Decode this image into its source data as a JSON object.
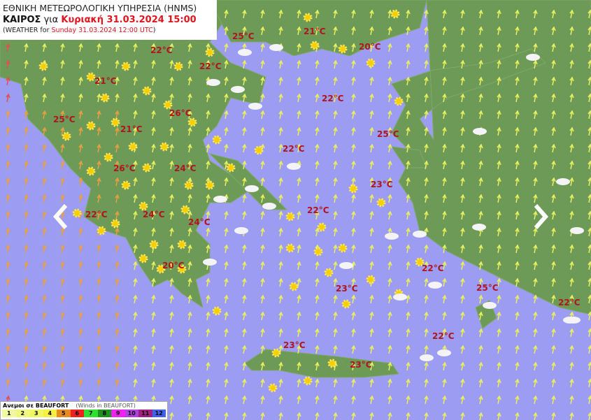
{
  "header": {
    "agency": "ΕΘΝΙΚΗ ΜΕΤΕΩΡΟΛΟΓΙΚΗ ΥΠΗΡΕΣΙΑ (HNMS)",
    "weather_label": "ΚΑΙΡΟΣ",
    "for_label": "για",
    "datetime_gr": "Κυριακή 31.03.2024 15:00",
    "en_prefix": "(WEATHER for",
    "datetime_en": "Sunday 31.03.2024 12:00 UTC",
    "en_suffix": ")"
  },
  "temperatures": [
    "25°C",
    "21°C",
    "22°C",
    "22°C",
    "20°C",
    "21°C",
    "22°C",
    "26°C",
    "25°C",
    "21°C",
    "25°C",
    "22°C",
    "26°C",
    "24°C",
    "23°C",
    "22°C",
    "22°C",
    "24°C",
    "24°C",
    "20°C",
    "22°C",
    "23°C",
    "25°C",
    "22°C",
    "22°C",
    "23°C",
    "23°C"
  ],
  "icons": {
    "sun": "sun-icon",
    "cloud": "cloud-icon",
    "wind": "wind-arrow-icon",
    "prev": "chevron-left-icon",
    "next": "chevron-right-icon"
  },
  "colors": {
    "sea": "#9c9cf2",
    "land": "#6e9a58",
    "temp_text": "#b0141e",
    "wind_arrow": "#e8f060",
    "sun": "#f5d000"
  },
  "legend": {
    "title": "Ανεμοι σε BEAUFORT",
    "subtitle": "(Winds in BEAUFORT)",
    "levels": [
      {
        "label": "1",
        "color": "#f0f8a0"
      },
      {
        "label": "2",
        "color": "#f0f880"
      },
      {
        "label": "3",
        "color": "#f0f860"
      },
      {
        "label": "4",
        "color": "#f8f040"
      },
      {
        "label": "5",
        "color": "#e88a20"
      },
      {
        "label": "6",
        "color": "#f02020"
      },
      {
        "label": "7",
        "color": "#30e030"
      },
      {
        "label": "8",
        "color": "#209020"
      },
      {
        "label": "9",
        "color": "#f020f0"
      },
      {
        "label": "10",
        "color": "#b040e0"
      },
      {
        "label": "11",
        "color": "#a02080"
      },
      {
        "label": "12",
        "color": "#4060f0"
      }
    ]
  }
}
